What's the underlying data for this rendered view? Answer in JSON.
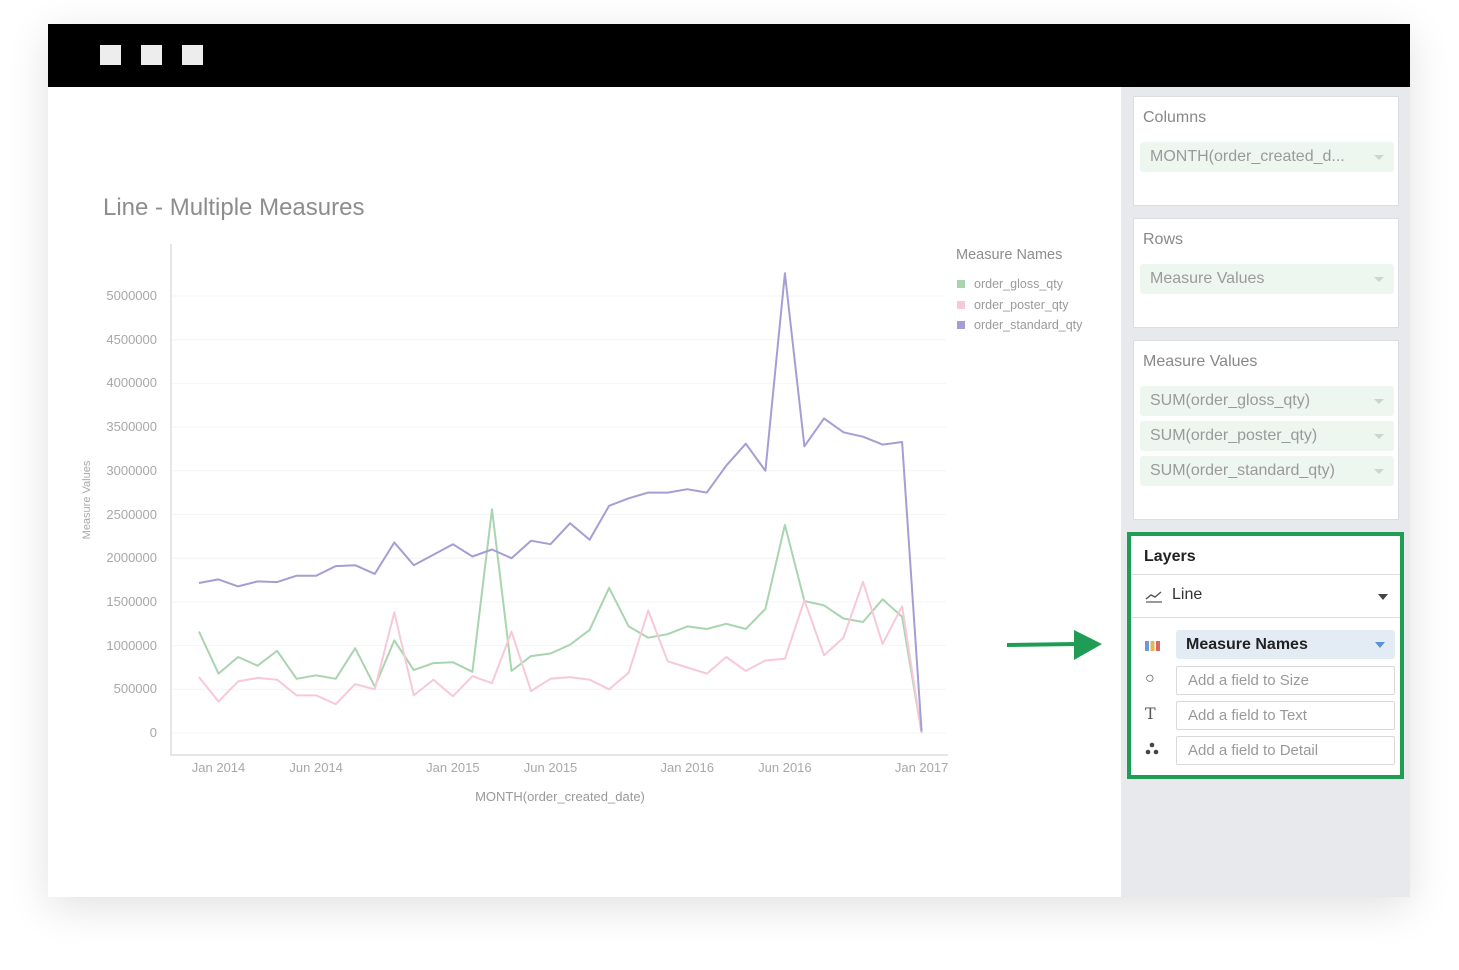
{
  "window": {
    "controls": [
      "square",
      "square",
      "square"
    ]
  },
  "sidebar": {
    "columns": {
      "title": "Columns",
      "field": "MONTH(order_created_d..."
    },
    "rows": {
      "title": "Rows",
      "field": "Measure Values"
    },
    "measure_values": {
      "title": "Measure Values",
      "fields": [
        "SUM(order_gloss_qty)",
        "SUM(order_poster_qty)",
        "SUM(order_standard_qty)"
      ]
    },
    "layers": {
      "title": "Layers",
      "type": "Line",
      "color_field": "Measure Names",
      "size_placeholder": "Add a field to Size",
      "text_placeholder": "Add a field to Text",
      "detail_placeholder": "Add a field to Detail",
      "color_swatches": [
        "#6f9bd1",
        "#e6b35a",
        "#d9695f"
      ]
    }
  },
  "annotation": {
    "arrow_color": "#1f9d55",
    "highlight_color": "#1f9d55"
  },
  "chart_data": {
    "type": "line",
    "title": "Line - Multiple Measures",
    "xlabel": "MONTH(order_created_date)",
    "ylabel": "Measure Values",
    "ylim": [
      0,
      5000000
    ],
    "yticks": [
      "0",
      "500000",
      "1000000",
      "1500000",
      "2000000",
      "2500000",
      "3000000",
      "3500000",
      "4000000",
      "4500000",
      "5000000"
    ],
    "xticks": [
      {
        "label": "Jan 2014",
        "x": "2014-01"
      },
      {
        "label": "Jun 2014",
        "x": "2014-06"
      },
      {
        "label": "Jan 2015",
        "x": "2015-01"
      },
      {
        "label": "Jun 2015",
        "x": "2015-06"
      },
      {
        "label": "Jan 2016",
        "x": "2016-01"
      },
      {
        "label": "Jun 2016",
        "x": "2016-06"
      },
      {
        "label": "Jan 2017",
        "x": "2017-01"
      }
    ],
    "grid": true,
    "legend": {
      "title": "Measure Names",
      "placement": "top-right"
    },
    "x": [
      "2013-12",
      "2014-01",
      "2014-02",
      "2014-03",
      "2014-04",
      "2014-05",
      "2014-06",
      "2014-07",
      "2014-08",
      "2014-09",
      "2014-10",
      "2014-11",
      "2014-12",
      "2015-01",
      "2015-02",
      "2015-03",
      "2015-04",
      "2015-05",
      "2015-06",
      "2015-07",
      "2015-08",
      "2015-09",
      "2015-10",
      "2015-11",
      "2015-12",
      "2016-01",
      "2016-02",
      "2016-03",
      "2016-04",
      "2016-05",
      "2016-06",
      "2016-07",
      "2016-08",
      "2016-09",
      "2016-10",
      "2016-11",
      "2016-12",
      "2017-01"
    ],
    "series": [
      {
        "name": "order_gloss_qty",
        "color": "#a8d5b0",
        "values": [
          1160000,
          680000,
          870000,
          770000,
          940000,
          620000,
          660000,
          620000,
          970000,
          530000,
          1060000,
          720000,
          800000,
          810000,
          700000,
          2560000,
          710000,
          880000,
          910000,
          1010000,
          1180000,
          1660000,
          1220000,
          1090000,
          1130000,
          1220000,
          1190000,
          1250000,
          1190000,
          1420000,
          2380000,
          1510000,
          1460000,
          1310000,
          1270000,
          1530000,
          1330000,
          0
        ]
      },
      {
        "name": "order_poster_qty",
        "color": "#f7c9d8",
        "values": [
          640000,
          360000,
          590000,
          630000,
          610000,
          430000,
          430000,
          330000,
          560000,
          500000,
          1380000,
          430000,
          610000,
          420000,
          650000,
          570000,
          1160000,
          480000,
          620000,
          640000,
          610000,
          500000,
          690000,
          1400000,
          820000,
          750000,
          680000,
          870000,
          710000,
          830000,
          850000,
          1520000,
          890000,
          1090000,
          1730000,
          1020000,
          1450000,
          0
        ]
      },
      {
        "name": "order_standard_qty",
        "color": "#a49ed4",
        "values": [
          1716000,
          1757000,
          1677000,
          1734000,
          1727000,
          1800000,
          1800000,
          1910000,
          1920000,
          1820000,
          2180000,
          1920000,
          2040000,
          2160000,
          2020000,
          2100000,
          2000000,
          2200000,
          2160000,
          2400000,
          2210000,
          2600000,
          2685000,
          2750000,
          2750000,
          2790000,
          2750000,
          3060000,
          3310000,
          3000000,
          5260000,
          3280000,
          3600000,
          3440000,
          3390000,
          3300000,
          3330000,
          20000
        ]
      }
    ]
  }
}
